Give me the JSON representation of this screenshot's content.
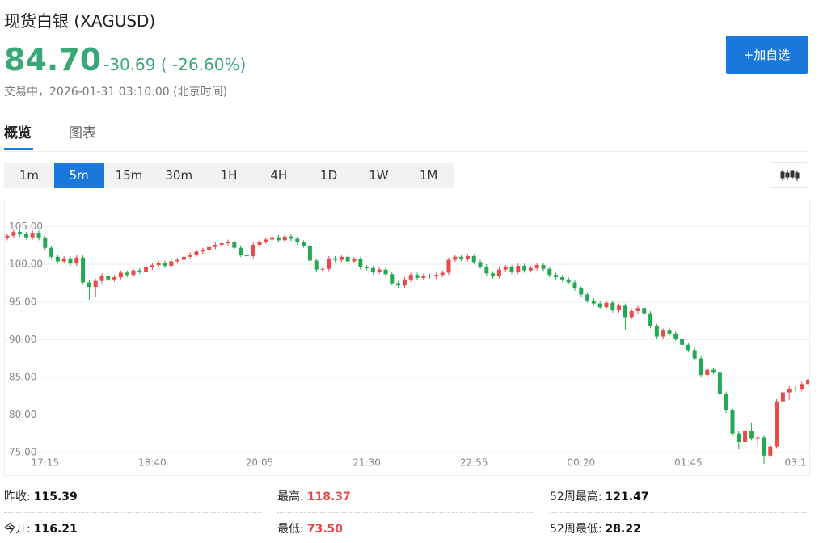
{
  "header": {
    "title": "现货白银 (XAGUSD)",
    "price": "84.70",
    "change": "-30.69",
    "change_pct": "( -26.60%)",
    "status": "交易中，2026-01-31 03:10:00 (北京时间)",
    "button": "+加自选"
  },
  "tabs": [
    "概览",
    "图表"
  ],
  "periods": [
    "1m",
    "5m",
    "15m",
    "30m",
    "1H",
    "4H",
    "1D",
    "1W",
    "1M"
  ],
  "chart_data": {
    "type": "candlestick",
    "categories": [
      null,
      null,
      null,
      null,
      null,
      null,
      "17:15",
      null,
      null,
      null,
      null,
      null,
      null,
      null,
      null,
      null,
      null,
      null,
      null,
      null,
      null,
      null,
      null,
      "18:40",
      null,
      null,
      null,
      null,
      null,
      null,
      null,
      null,
      null,
      null,
      null,
      null,
      null,
      null,
      null,
      null,
      "20:05",
      null,
      null,
      null,
      null,
      null,
      null,
      null,
      null,
      null,
      null,
      null,
      null,
      null,
      null,
      null,
      null,
      "21:30",
      null,
      null,
      null,
      null,
      null,
      null,
      null,
      null,
      null,
      null,
      null,
      null,
      null,
      null,
      null,
      null,
      "22:55",
      null,
      null,
      null,
      null,
      null,
      null,
      null,
      null,
      null,
      null,
      null,
      null,
      null,
      null,
      null,
      null,
      "00:20",
      null,
      null,
      null,
      null,
      null,
      null,
      null,
      null,
      null,
      null,
      null,
      null,
      null,
      null,
      null,
      null,
      "01:45",
      null,
      null,
      null,
      null,
      null,
      null,
      null,
      null,
      null,
      null,
      null,
      null,
      null,
      null,
      null,
      null,
      "03:1",
      null,
      null
    ],
    "open": [
      103.5,
      103.8,
      104.3,
      104.0,
      103.6,
      104.2,
      103.5,
      102.2,
      101.0,
      100.4,
      100.8,
      100.1,
      100.9,
      97.6,
      97.0,
      97.8,
      98.5,
      98.0,
      98.3,
      98.9,
      98.6,
      99.2,
      99.0,
      99.6,
      99.9,
      100.2,
      99.8,
      100.4,
      100.6,
      101.0,
      101.3,
      101.7,
      101.9,
      102.3,
      102.6,
      102.8,
      103.0,
      102.2,
      101.3,
      101.1,
      102.6,
      103.0,
      103.3,
      103.6,
      103.2,
      103.7,
      103.4,
      102.9,
      102.5,
      100.5,
      99.3,
      99.4,
      100.8,
      100.6,
      101.0,
      100.4,
      100.7,
      99.6,
      99.5,
      99.0,
      99.3,
      98.7,
      97.5,
      97.2,
      98.0,
      98.6,
      98.2,
      98.5,
      98.4,
      98.6,
      98.9,
      100.6,
      101.0,
      100.7,
      101.1,
      100.3,
      99.7,
      98.8,
      98.4,
      99.3,
      99.6,
      99.0,
      99.8,
      99.2,
      99.5,
      99.9,
      99.4,
      98.6,
      98.3,
      98.0,
      97.6,
      96.8,
      96.0,
      95.2,
      94.8,
      94.3,
      94.9,
      93.9,
      94.5,
      93.0,
      93.8,
      94.2,
      93.5,
      91.8,
      90.4,
      91.2,
      90.8,
      90.1,
      89.3,
      88.6,
      87.5,
      85.3,
      86.0,
      85.7,
      82.8,
      80.6,
      77.5,
      76.4,
      77.8,
      76.9,
      77.0,
      74.6,
      75.8,
      81.8,
      83.0,
      83.5,
      83.4,
      84.1
    ],
    "high": [
      104.1,
      104.6,
      104.6,
      104.3,
      104.5,
      104.5,
      103.8,
      102.5,
      101.3,
      101.1,
      101.1,
      101.2,
      101.2,
      97.9,
      98.1,
      98.8,
      98.8,
      98.6,
      99.2,
      99.2,
      99.5,
      99.5,
      99.9,
      100.2,
      100.5,
      100.5,
      100.7,
      100.9,
      101.3,
      101.6,
      102.0,
      102.2,
      102.6,
      102.9,
      103.1,
      103.3,
      103.3,
      102.5,
      101.6,
      102.9,
      103.3,
      103.6,
      103.9,
      103.9,
      104.0,
      104.0,
      103.7,
      103.2,
      102.8,
      100.8,
      99.7,
      101.1,
      101.1,
      101.3,
      101.3,
      101.0,
      101.0,
      99.9,
      99.8,
      99.6,
      99.6,
      99.0,
      97.8,
      98.3,
      98.9,
      98.9,
      98.8,
      98.8,
      98.9,
      99.2,
      100.9,
      101.3,
      101.3,
      101.4,
      101.4,
      100.6,
      100.0,
      99.1,
      99.6,
      99.9,
      99.9,
      100.1,
      100.1,
      99.8,
      100.2,
      100.2,
      99.7,
      98.9,
      98.6,
      98.3,
      97.9,
      97.1,
      96.3,
      95.5,
      95.1,
      95.2,
      95.2,
      94.8,
      94.8,
      94.1,
      94.5,
      94.5,
      93.8,
      92.1,
      91.5,
      91.5,
      91.1,
      90.4,
      89.6,
      88.9,
      87.8,
      86.3,
      86.3,
      86.0,
      83.1,
      80.9,
      77.8,
      78.1,
      79.0,
      77.3,
      77.3,
      76.1,
      82.1,
      83.3,
      83.8,
      83.8,
      84.4,
      85.0
    ],
    "low": [
      103.2,
      103.5,
      103.7,
      103.3,
      103.3,
      103.2,
      101.9,
      100.7,
      100.1,
      100.1,
      99.8,
      99.8,
      97.3,
      95.3,
      95.6,
      97.5,
      97.7,
      97.7,
      98.0,
      98.3,
      98.3,
      98.7,
      98.7,
      99.3,
      99.6,
      99.5,
      99.5,
      100.1,
      100.3,
      100.7,
      101.0,
      101.4,
      101.6,
      102.0,
      102.3,
      102.5,
      101.9,
      101.0,
      100.8,
      100.8,
      102.3,
      102.7,
      103.0,
      102.9,
      102.9,
      103.1,
      102.6,
      102.2,
      100.2,
      99.0,
      99.0,
      99.1,
      100.3,
      100.3,
      100.1,
      100.1,
      99.3,
      99.2,
      98.7,
      98.7,
      98.4,
      97.2,
      96.9,
      96.9,
      97.7,
      97.9,
      97.9,
      98.1,
      98.1,
      98.3,
      98.6,
      100.3,
      100.4,
      100.4,
      100.0,
      99.4,
      98.5,
      98.1,
      98.1,
      99.0,
      98.7,
      98.7,
      98.9,
      98.9,
      99.2,
      99.1,
      98.3,
      98.0,
      97.7,
      97.3,
      96.5,
      95.7,
      94.9,
      94.5,
      94.0,
      94.0,
      93.6,
      93.6,
      91.2,
      92.7,
      93.5,
      93.2,
      91.5,
      90.1,
      90.1,
      90.5,
      89.8,
      89.0,
      88.3,
      87.2,
      85.0,
      85.0,
      85.4,
      82.5,
      80.3,
      77.2,
      75.4,
      76.1,
      76.6,
      75.8,
      73.5,
      74.3,
      75.5,
      81.5,
      82.0,
      83.1,
      83.1,
      83.8
    ],
    "close": [
      103.8,
      104.3,
      104.0,
      103.6,
      104.2,
      103.5,
      102.2,
      101.0,
      100.4,
      100.8,
      100.1,
      100.9,
      97.6,
      97.0,
      97.8,
      98.5,
      98.0,
      98.3,
      98.9,
      98.6,
      99.2,
      99.0,
      99.6,
      99.9,
      100.2,
      99.8,
      100.4,
      100.6,
      101.0,
      101.3,
      101.7,
      101.9,
      102.3,
      102.6,
      102.8,
      103.0,
      102.2,
      101.3,
      101.1,
      102.6,
      103.0,
      103.3,
      103.6,
      103.2,
      103.7,
      103.4,
      102.9,
      102.5,
      100.5,
      99.3,
      99.4,
      100.8,
      100.6,
      101.0,
      100.4,
      100.7,
      99.6,
      99.5,
      99.0,
      99.3,
      98.7,
      97.5,
      97.2,
      98.0,
      98.6,
      98.2,
      98.5,
      98.4,
      98.6,
      98.9,
      100.6,
      101.0,
      100.7,
      101.1,
      100.3,
      99.7,
      98.8,
      98.4,
      99.3,
      99.6,
      99.0,
      99.8,
      99.2,
      99.5,
      99.9,
      99.4,
      98.6,
      98.3,
      98.0,
      97.6,
      96.8,
      96.0,
      95.2,
      94.8,
      94.3,
      94.9,
      93.9,
      94.5,
      93.0,
      93.8,
      94.2,
      93.5,
      91.8,
      90.4,
      91.2,
      90.8,
      90.1,
      89.3,
      88.6,
      87.5,
      85.3,
      86.0,
      85.7,
      82.8,
      80.6,
      77.5,
      76.4,
      77.8,
      76.9,
      77.0,
      74.6,
      75.8,
      81.8,
      83.0,
      83.5,
      83.4,
      84.1,
      84.7
    ],
    "up_color": "#e84a4a",
    "down_color": "#22a952",
    "ylim": [
      72,
      108.5
    ],
    "yticks": [
      {
        "value": 75,
        "label": "75.00"
      },
      {
        "value": 80,
        "label": "80.00"
      },
      {
        "value": 85,
        "label": "85.00"
      },
      {
        "value": 90,
        "label": "90.00"
      },
      {
        "value": 95,
        "label": "95.00"
      },
      {
        "value": 100,
        "label": "100.00"
      },
      {
        "value": 105,
        "label": "105.00"
      }
    ],
    "grid": true
  },
  "stats": [
    [
      {
        "label": "昨收:",
        "value": "115.39"
      },
      {
        "label": "最高:",
        "value": "118.37"
      },
      {
        "label": "52周最高:",
        "value": "121.47"
      }
    ],
    [
      {
        "label": "今开:",
        "value": "116.21"
      },
      {
        "label": "最低:",
        "value": "73.50"
      },
      {
        "label": "52周最低:",
        "value": "28.22"
      }
    ]
  ]
}
